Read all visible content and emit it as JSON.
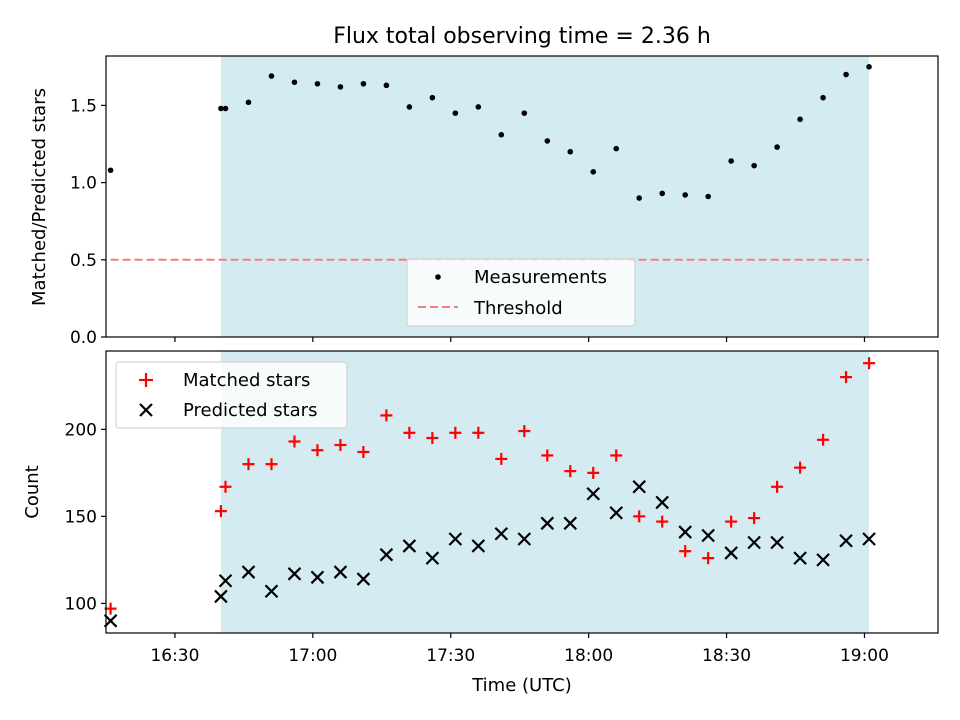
{
  "chart_data": [
    {
      "type": "scatter",
      "title": "Flux total observing time = 2.36 h",
      "ylabel": "Matched/Predicted stars",
      "xlabel": "",
      "ylim": [
        0,
        1.82
      ],
      "xlim": [
        "16:15",
        "19:16"
      ],
      "yticks": [
        "0.0",
        "0.5",
        "1.0",
        "1.5"
      ],
      "shaded_range": [
        "16:40",
        "19:01"
      ],
      "shade_color": "#d4ebf1",
      "legend_position": "bottom-center",
      "series": [
        {
          "name": "Measurements",
          "color": "#000000",
          "marker": "dot",
          "points": [
            [
              "16:16",
              1.08
            ],
            [
              "16:40",
              1.48
            ],
            [
              "16:41",
              1.48
            ],
            [
              "16:46",
              1.52
            ],
            [
              "16:51",
              1.69
            ],
            [
              "16:56",
              1.65
            ],
            [
              "17:01",
              1.64
            ],
            [
              "17:06",
              1.62
            ],
            [
              "17:11",
              1.64
            ],
            [
              "17:16",
              1.63
            ],
            [
              "17:21",
              1.49
            ],
            [
              "17:26",
              1.55
            ],
            [
              "17:31",
              1.45
            ],
            [
              "17:36",
              1.49
            ],
            [
              "17:41",
              1.31
            ],
            [
              "17:46",
              1.45
            ],
            [
              "17:51",
              1.27
            ],
            [
              "17:56",
              1.2
            ],
            [
              "18:01",
              1.07
            ],
            [
              "18:06",
              1.22
            ],
            [
              "18:11",
              0.9
            ],
            [
              "18:16",
              0.93
            ],
            [
              "18:21",
              0.92
            ],
            [
              "18:26",
              0.91
            ],
            [
              "18:31",
              1.14
            ],
            [
              "18:36",
              1.11
            ],
            [
              "18:41",
              1.23
            ],
            [
              "18:46",
              1.41
            ],
            [
              "18:51",
              1.55
            ],
            [
              "18:56",
              1.7
            ],
            [
              "19:01",
              1.75
            ]
          ]
        },
        {
          "name": "Threshold",
          "color": "#f08080",
          "line": "dashed",
          "points": [
            [
              "16:16",
              0.5
            ],
            [
              "19:01",
              0.5
            ]
          ]
        }
      ]
    },
    {
      "type": "scatter",
      "title": "",
      "ylabel": "Count",
      "xlabel": "Time (UTC)",
      "ylim": [
        83,
        245
      ],
      "xlim": [
        "16:15",
        "19:16"
      ],
      "yticks": [
        "100",
        "150",
        "200"
      ],
      "xticks": [
        "16:30",
        "17:00",
        "17:30",
        "18:00",
        "18:30",
        "19:00"
      ],
      "shaded_range": [
        "16:40",
        "19:01"
      ],
      "shade_color": "#d4ebf1",
      "legend_position": "top-left",
      "series": [
        {
          "name": "Matched stars",
          "color": "#ff0000",
          "marker": "plus",
          "points": [
            [
              "16:16",
              97
            ],
            [
              "16:40",
              153
            ],
            [
              "16:41",
              167
            ],
            [
              "16:46",
              180
            ],
            [
              "16:51",
              180
            ],
            [
              "16:56",
              193
            ],
            [
              "17:01",
              188
            ],
            [
              "17:06",
              191
            ],
            [
              "17:11",
              187
            ],
            [
              "17:16",
              208
            ],
            [
              "17:21",
              198
            ],
            [
              "17:26",
              195
            ],
            [
              "17:31",
              198
            ],
            [
              "17:36",
              198
            ],
            [
              "17:41",
              183
            ],
            [
              "17:46",
              199
            ],
            [
              "17:51",
              185
            ],
            [
              "17:56",
              176
            ],
            [
              "18:01",
              175
            ],
            [
              "18:06",
              185
            ],
            [
              "18:11",
              150
            ],
            [
              "18:16",
              147
            ],
            [
              "18:21",
              130
            ],
            [
              "18:26",
              126
            ],
            [
              "18:31",
              147
            ],
            [
              "18:36",
              149
            ],
            [
              "18:41",
              167
            ],
            [
              "18:46",
              178
            ],
            [
              "18:51",
              194
            ],
            [
              "18:56",
              230
            ],
            [
              "19:01",
              238
            ]
          ]
        },
        {
          "name": "Predicted stars",
          "color": "#000000",
          "marker": "x",
          "points": [
            [
              "16:16",
              90
            ],
            [
              "16:40",
              104
            ],
            [
              "16:41",
              113
            ],
            [
              "16:46",
              118
            ],
            [
              "16:51",
              107
            ],
            [
              "16:56",
              117
            ],
            [
              "17:01",
              115
            ],
            [
              "17:06",
              118
            ],
            [
              "17:11",
              114
            ],
            [
              "17:16",
              128
            ],
            [
              "17:21",
              133
            ],
            [
              "17:26",
              126
            ],
            [
              "17:31",
              137
            ],
            [
              "17:36",
              133
            ],
            [
              "17:41",
              140
            ],
            [
              "17:46",
              137
            ],
            [
              "17:51",
              146
            ],
            [
              "17:56",
              146
            ],
            [
              "18:01",
              163
            ],
            [
              "18:06",
              152
            ],
            [
              "18:11",
              167
            ],
            [
              "18:16",
              158
            ],
            [
              "18:21",
              141
            ],
            [
              "18:26",
              139
            ],
            [
              "18:31",
              129
            ],
            [
              "18:36",
              135
            ],
            [
              "18:41",
              135
            ],
            [
              "18:46",
              126
            ],
            [
              "18:51",
              125
            ],
            [
              "18:56",
              136
            ],
            [
              "19:01",
              137
            ]
          ]
        }
      ]
    }
  ]
}
